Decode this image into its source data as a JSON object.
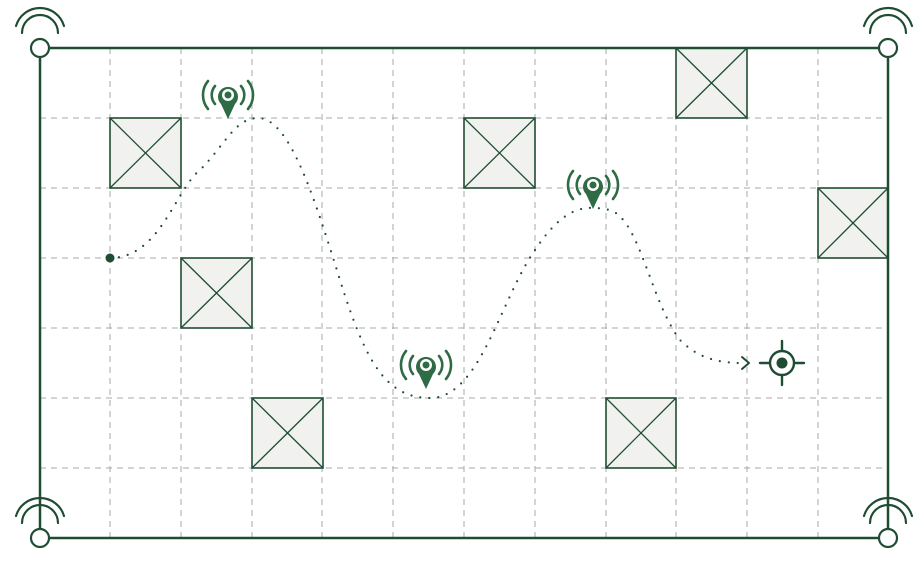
{
  "diagram": {
    "kind": "indoor-positioning-floor-map",
    "grid": {
      "columns": 12,
      "rows": 7,
      "line_style": "dashed"
    },
    "colors": {
      "primary": "#1f4d33",
      "accent": "#2f6b45",
      "grid": "#a8a8a8",
      "obstacle_fill": "#f1f2f0",
      "background": "#ffffff"
    },
    "anchors": [
      {
        "name": "corner-anchor-top-left",
        "icon": "wifi-anchor-icon"
      },
      {
        "name": "corner-anchor-top-right",
        "icon": "wifi-anchor-icon"
      },
      {
        "name": "corner-anchor-bottom-left",
        "icon": "wifi-anchor-icon"
      },
      {
        "name": "corner-anchor-bottom-right",
        "icon": "wifi-anchor-icon"
      }
    ],
    "obstacles": [
      {
        "col": 1,
        "row": 1
      },
      {
        "col": 6,
        "row": 1
      },
      {
        "col": 9,
        "row": 0
      },
      {
        "col": 11,
        "row": 2
      },
      {
        "col": 2,
        "row": 3
      },
      {
        "col": 3,
        "row": 5
      },
      {
        "col": 8,
        "row": 5
      }
    ],
    "beacons": [
      {
        "name": "beacon-1",
        "icon": "location-beacon-icon"
      },
      {
        "name": "beacon-2",
        "icon": "location-beacon-icon"
      },
      {
        "name": "beacon-3",
        "icon": "location-beacon-icon"
      }
    ],
    "route": {
      "start_icon": "start-point-icon",
      "end_icon": "target-crosshair-icon",
      "style": "dotted"
    }
  }
}
